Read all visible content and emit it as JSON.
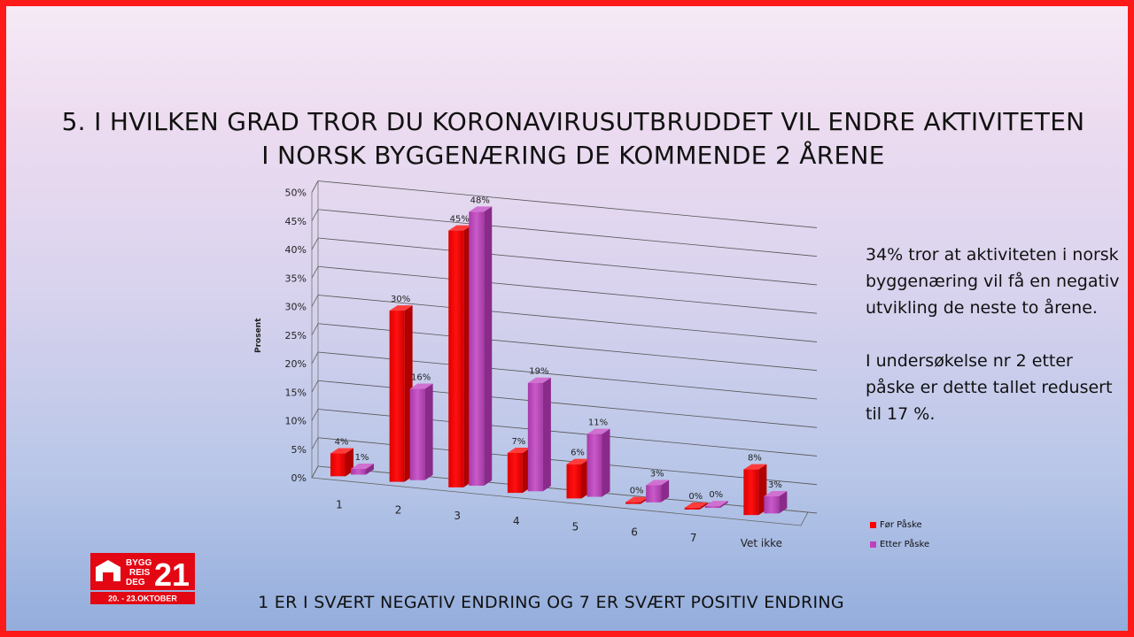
{
  "title": "5. I HVILKEN GRAD TROR DU KORONAVIRUSUTBRUDDET  VIL ENDRE AKTIVITETEN I NORSK BYGGENÆRING DE KOMMENDE 2 ÅRENE",
  "note": {
    "p1": "34% tror at aktiviteten i norsk byggenæring vil få en negativ utvikling de neste to årene.",
    "p2": "I undersøkelse nr 2 etter påske er dette tallet redusert til 17 %."
  },
  "footer": "1 ER I SVÆRT NEGATIV ENDRING OG 7 ER SVÆRT POSITIV ENDRING",
  "logo": {
    "line1": "BYGG",
    "line2": "REIS",
    "line3": "DEG",
    "number": "21",
    "dates": "20. - 23.OKTOBER"
  },
  "colors": {
    "border": "#ff1a1a",
    "series1": "#ff0000",
    "series2": "#bf40bf"
  },
  "chart_data": {
    "type": "bar",
    "ylabel": "Prosent",
    "categories": [
      "1",
      "2",
      "3",
      "4",
      "5",
      "6",
      "7",
      "Vet ikke"
    ],
    "yticks": [
      "0%",
      "5%",
      "10%",
      "15%",
      "20%",
      "25%",
      "30%",
      "35%",
      "40%",
      "45%",
      "50%"
    ],
    "ylim": [
      0,
      50
    ],
    "series": [
      {
        "name": "Før Påske",
        "values": [
          4,
          30,
          45,
          7,
          6,
          0,
          0,
          8
        ],
        "labels": [
          "4%",
          "30%",
          "45%",
          "7%",
          "6%",
          "0%",
          "0%",
          "8%"
        ]
      },
      {
        "name": "Etter Påske",
        "values": [
          1,
          16,
          48,
          19,
          11,
          3,
          0,
          3
        ],
        "labels": [
          "1%",
          "16%",
          "48%",
          "19%",
          "11%",
          "3%",
          "0%",
          "3%"
        ]
      }
    ],
    "grid": true,
    "legend": "right"
  }
}
